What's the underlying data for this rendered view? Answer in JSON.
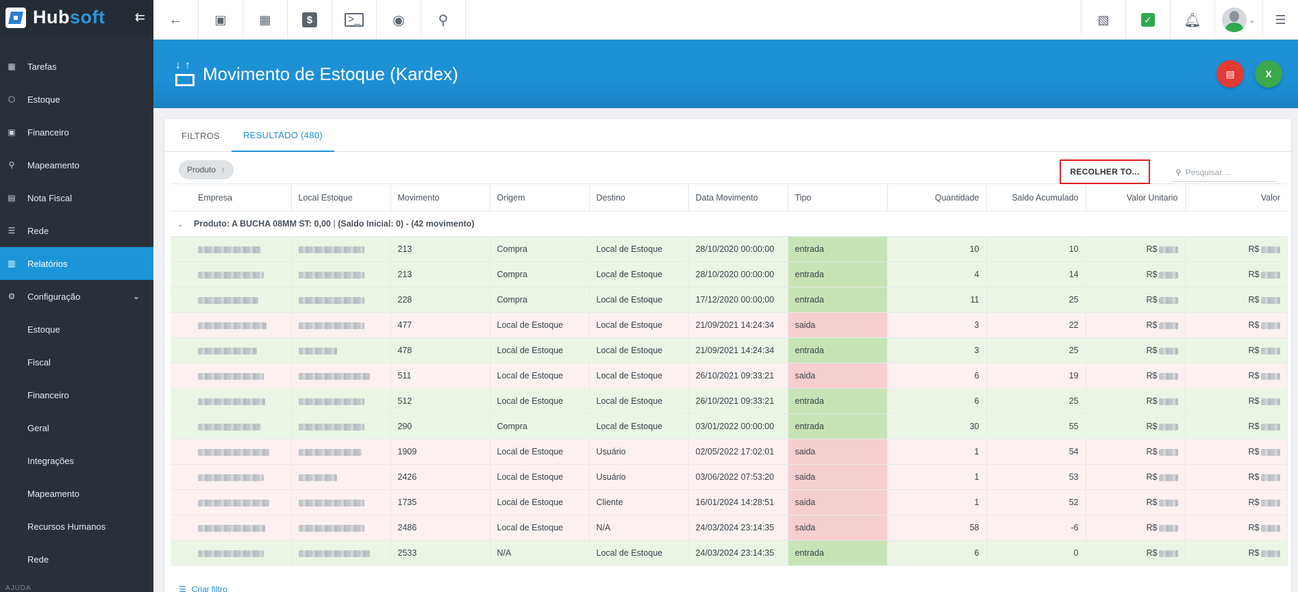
{
  "app": {
    "brand_a": "Hub",
    "brand_b": "soft"
  },
  "sidebar": {
    "items": [
      {
        "label": "Tarefas",
        "icon": "calendar-icon"
      },
      {
        "label": "Estoque",
        "icon": "box-icon"
      },
      {
        "label": "Financeiro",
        "icon": "money-icon"
      },
      {
        "label": "Mapeamento",
        "icon": "map-pin-icon"
      },
      {
        "label": "Nota Fiscal",
        "icon": "document-icon"
      },
      {
        "label": "Rede",
        "icon": "network-icon"
      },
      {
        "label": "Relatórios",
        "icon": "report-icon"
      },
      {
        "label": "Configuração",
        "icon": "gear-icon"
      }
    ],
    "subitems": [
      "Estoque",
      "Fiscal",
      "Financeiro",
      "Geral",
      "Integrações",
      "Mapeamento",
      "Recursos Humanos",
      "Rede"
    ],
    "section_label": "AJUDA"
  },
  "page": {
    "title": "Movimento de Estoque (Kardex)"
  },
  "tabs": [
    "FILTROS",
    "RESULTADO (480)"
  ],
  "toolbar": {
    "chip_label": "Produto",
    "collapse_label": "RECOLHER TO...",
    "search_placeholder": "Pesquisar ..."
  },
  "table": {
    "headers": [
      "Empresa",
      "Local Estoque",
      "Movimento",
      "Origem",
      "Destino",
      "Data Movimento",
      "Tipo",
      "Quantidade",
      "Saldo Acumulado",
      "Valor Unitario",
      "Valor"
    ],
    "group": {
      "product": "Produto: A BUCHA 08MM ST: 0,00",
      "info": "(Saldo Inicial: 0) - (42 movimento)"
    },
    "currency": "R$",
    "rows": [
      {
        "movimento": "213",
        "origem": "Compra",
        "destino": "Local de Estoque",
        "data": "28/10/2020 00:00:00",
        "tipo": "entrada",
        "quantidade": "10",
        "saldo": "10"
      },
      {
        "movimento": "213",
        "origem": "Compra",
        "destino": "Local de Estoque",
        "data": "28/10/2020 00:00:00",
        "tipo": "entrada",
        "quantidade": "4",
        "saldo": "14"
      },
      {
        "movimento": "228",
        "origem": "Compra",
        "destino": "Local de Estoque",
        "data": "17/12/2020 00:00:00",
        "tipo": "entrada",
        "quantidade": "11",
        "saldo": "25"
      },
      {
        "movimento": "477",
        "origem": "Local de Estoque",
        "destino": "Local de Estoque",
        "data": "21/09/2021 14:24:34",
        "tipo": "saida",
        "quantidade": "3",
        "saldo": "22"
      },
      {
        "movimento": "478",
        "origem": "Local de Estoque",
        "destino": "Local de Estoque",
        "data": "21/09/2021 14:24:34",
        "tipo": "entrada",
        "quantidade": "3",
        "saldo": "25"
      },
      {
        "movimento": "511",
        "origem": "Local de Estoque",
        "destino": "Local de Estoque",
        "data": "26/10/2021 09:33:21",
        "tipo": "saida",
        "quantidade": "6",
        "saldo": "19"
      },
      {
        "movimento": "512",
        "origem": "Local de Estoque",
        "destino": "Local de Estoque",
        "data": "26/10/2021 09:33:21",
        "tipo": "entrada",
        "quantidade": "6",
        "saldo": "25"
      },
      {
        "movimento": "290",
        "origem": "Compra",
        "destino": "Local de Estoque",
        "data": "03/01/2022 00:00:00",
        "tipo": "entrada",
        "quantidade": "30",
        "saldo": "55"
      },
      {
        "movimento": "1909",
        "origem": "Local de Estoque",
        "destino": "Usuário",
        "data": "02/05/2022 17:02:01",
        "tipo": "saida",
        "quantidade": "1",
        "saldo": "54"
      },
      {
        "movimento": "2426",
        "origem": "Local de Estoque",
        "destino": "Usuário",
        "data": "03/06/2022 07:53:20",
        "tipo": "saida",
        "quantidade": "1",
        "saldo": "53"
      },
      {
        "movimento": "1735",
        "origem": "Local de Estoque",
        "destino": "Cliente",
        "data": "16/01/2024 14:28:51",
        "tipo": "saida",
        "quantidade": "1",
        "saldo": "52"
      },
      {
        "movimento": "2486",
        "origem": "Local de Estoque",
        "destino": "N/A",
        "data": "24/03/2024 23:14:35",
        "tipo": "saida",
        "quantidade": "58",
        "saldo": "-6"
      },
      {
        "movimento": "2533",
        "origem": "N/A",
        "destino": "Local de Estoque",
        "data": "24/03/2024 23:14:35",
        "tipo": "entrada",
        "quantidade": "6",
        "saldo": "0"
      }
    ]
  },
  "footer": {
    "create_filter": "Criar filtro"
  },
  "colors": {
    "accent": "#1c95d8",
    "sidebar": "#2a3039",
    "entrada": "#c6e4b6",
    "saida": "#f5cfcf",
    "pdf": "#e53935",
    "excel": "#3aa84b"
  }
}
